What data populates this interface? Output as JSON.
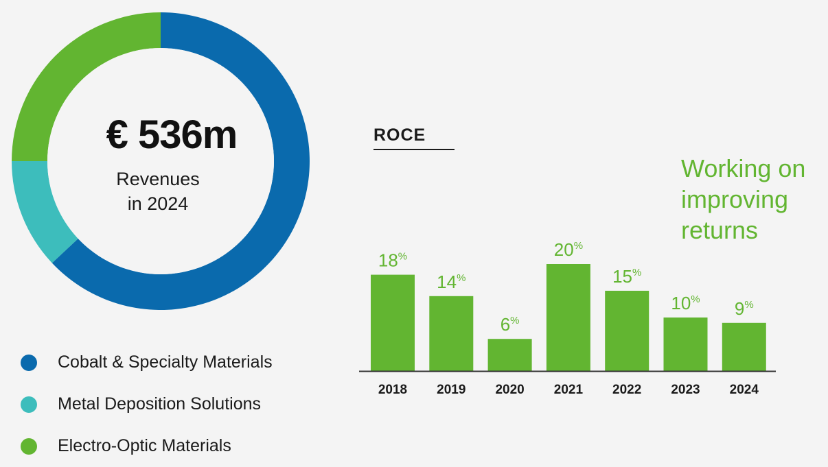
{
  "colors": {
    "cobalt": "#0a6aad",
    "metal_deposition": "#3dbdbc",
    "electro_optic": "#62b531",
    "bar": "#62b531",
    "bar_label": "#62b531",
    "text": "#1a1a1a",
    "background": "#f4f4f4"
  },
  "donut": {
    "amount": "€ 536m",
    "caption_line1": "Revenues",
    "caption_line2": "in 2024"
  },
  "legend": [
    {
      "label": "Cobalt & Specialty Materials",
      "color": "#0a6aad"
    },
    {
      "label": "Metal Deposition Solutions",
      "color": "#3dbdbc"
    },
    {
      "label": "Electro-Optic Materials",
      "color": "#62b531"
    }
  ],
  "roce_title": "ROCE",
  "annotation": {
    "line1": "Working on",
    "line2": "improving",
    "line3": "returns"
  },
  "chart_data": [
    {
      "type": "pie",
      "donut": true,
      "categories": [
        "Cobalt & Specialty Materials",
        "Metal Deposition Solutions",
        "Electro-Optic Materials"
      ],
      "values": [
        63,
        12,
        25
      ],
      "colors": [
        "#0a6aad",
        "#3dbdbc",
        "#62b531"
      ],
      "center_text": "€ 536m",
      "center_subtext": "Revenues in 2024",
      "legend_position": "bottom"
    },
    {
      "type": "bar",
      "title": "ROCE",
      "categories": [
        "2018",
        "2019",
        "2020",
        "2021",
        "2022",
        "2023",
        "2024"
      ],
      "values": [
        18,
        14,
        6,
        20,
        15,
        10,
        9
      ],
      "value_unit": "%",
      "ylim": [
        0,
        20
      ],
      "grid": false,
      "data_labels": true,
      "color": "#62b531"
    }
  ]
}
